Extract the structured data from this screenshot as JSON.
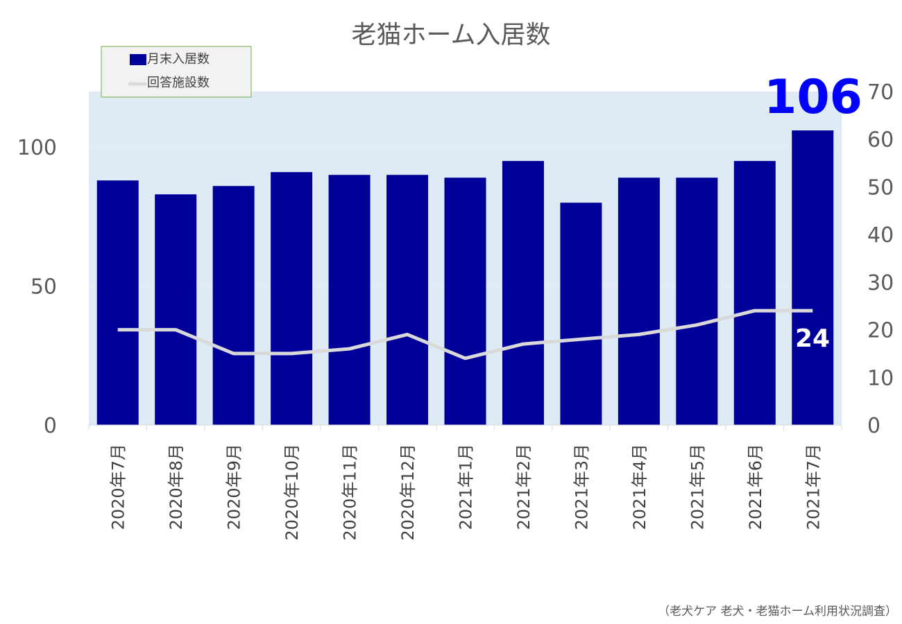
{
  "chart_data": {
    "type": "bar",
    "title": "老猫ホーム入居数",
    "categories": [
      "2020年7月",
      "2020年8月",
      "2020年9月",
      "2020年10月",
      "2020年11月",
      "2020年12月",
      "2021年1月",
      "2021年2月",
      "2021年3月",
      "2021年4月",
      "2021年5月",
      "2021年6月",
      "2021年7月"
    ],
    "series": [
      {
        "name": "月末入居数",
        "type": "bar",
        "axis": "left",
        "color": "#000099",
        "values": [
          88,
          83,
          86,
          91,
          90,
          90,
          89,
          95,
          80,
          89,
          89,
          95,
          106
        ]
      },
      {
        "name": "回答施設数",
        "type": "line",
        "axis": "right",
        "color": "#d9d9d9",
        "values": [
          20,
          20,
          15,
          15,
          16,
          19,
          14,
          17,
          18,
          19,
          21,
          24,
          24
        ]
      }
    ],
    "y_left": {
      "ylim": [
        0,
        120
      ],
      "ticks": [
        0,
        50,
        100
      ]
    },
    "y_right": {
      "ylim": [
        0,
        70
      ],
      "ticks": [
        0,
        10,
        20,
        30,
        40,
        50,
        60,
        70
      ]
    },
    "grid": true,
    "legend": "top-left",
    "plot_background": "#deebf7",
    "callouts": {
      "last_bar": "106",
      "last_line": "24"
    },
    "source": "（老犬ケア 老犬・老猫ホーム利用状況調査）"
  }
}
